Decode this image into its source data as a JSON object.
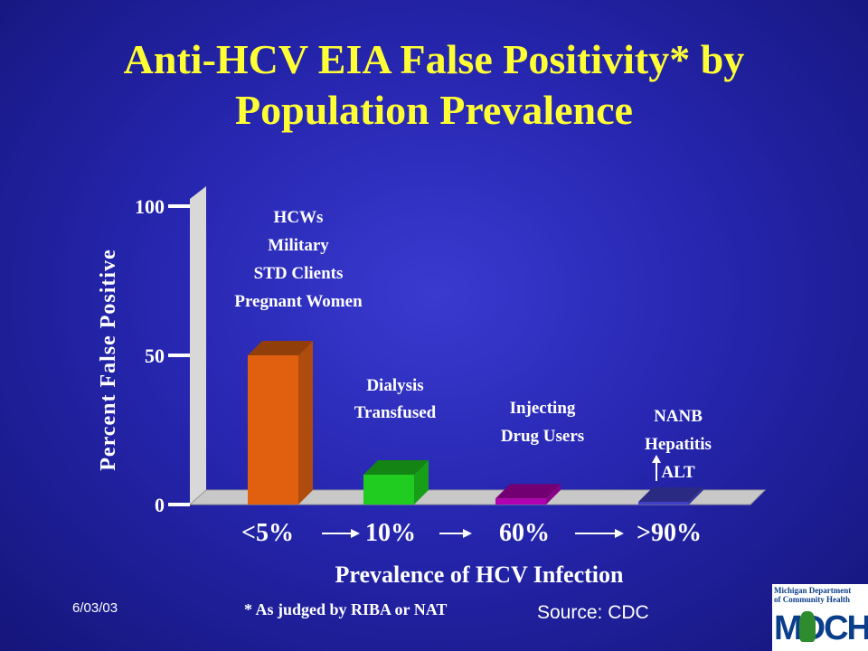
{
  "title_line1": "Anti-HCV EIA False Positivity* by",
  "title_line2": "Population Prevalence",
  "chart_data": {
    "type": "bar",
    "categories": [
      "<5%",
      "10%",
      "60%",
      ">90%"
    ],
    "values": [
      50,
      10,
      2,
      0.5
    ],
    "colors": [
      "#e06010",
      "#1fcc1f",
      "#b000b0",
      "#4040c8"
    ],
    "ylabel": "Percent False Positive",
    "xlabel": "Prevalence of HCV Infection",
    "ylim": [
      0,
      100
    ],
    "yticks": [
      "0",
      "50",
      "100"
    ],
    "bar_labels": [
      [
        "HCWs",
        "Military",
        "STD Clients",
        "Pregnant Women"
      ],
      [
        "Dialysis",
        "Transfused"
      ],
      [
        "Injecting",
        "Drug Users"
      ],
      [
        "NANB",
        "Hepatitis",
        "ALT"
      ]
    ]
  },
  "footer": {
    "date": "6/03/03",
    "footnote": "* As judged by RIBA or NAT",
    "source": "Source: CDC"
  },
  "logo": {
    "line1": "Michigan Department",
    "line2": "of Community Health",
    "mark": "MDCH"
  }
}
